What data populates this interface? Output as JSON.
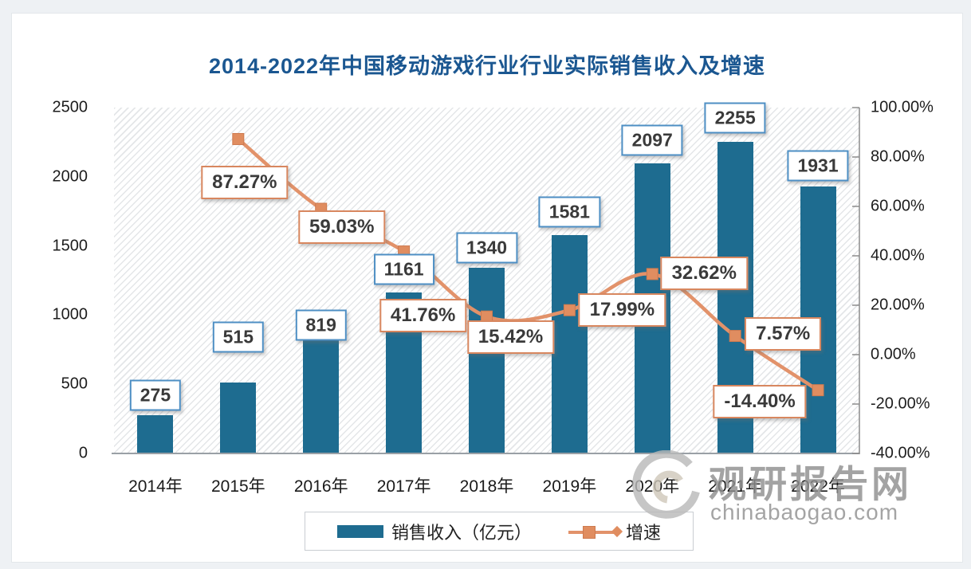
{
  "title": "2014-2022年中国移动游戏行业行业实际销售收入及增速",
  "watermark": {
    "brand": "观研报告网",
    "site": "chinabaogao.com"
  },
  "legend": [
    {
      "label": "销售收入（亿元）",
      "swatch": "bar"
    },
    {
      "label": "增速",
      "swatch": "line"
    }
  ],
  "colors": {
    "bar": "#1e6c90",
    "line": "#e2926a",
    "marker": "#e08d60",
    "marker_border": "#cd7a4f",
    "bar_label_border": "#4e8fc4",
    "pct_label_border": "#d8875f",
    "title": "#1b5791",
    "axis_line": "#9aa0a6",
    "watermark": "#8f8f8f"
  },
  "chart_data": {
    "type": "bar",
    "subtype": "bar+line-dual-axis",
    "title": "2014-2022年中国移动游戏行业行业实际销售收入及增速",
    "categories": [
      "2014年",
      "2015年",
      "2016年",
      "2017年",
      "2018年",
      "2019年",
      "2020年",
      "2021年",
      "2022年"
    ],
    "series": [
      {
        "name": "销售收入（亿元）",
        "type": "bar",
        "axis": "left",
        "values": [
          275,
          515,
          819,
          1161,
          1340,
          1581,
          2097,
          2255,
          1931
        ],
        "labels": [
          "275",
          "515",
          "819",
          "1161",
          "1340",
          "1581",
          "2097",
          "2255",
          "1931"
        ]
      },
      {
        "name": "增速",
        "type": "line",
        "axis": "right",
        "values": [
          null,
          87.27,
          59.03,
          41.76,
          15.42,
          17.99,
          32.62,
          7.57,
          -14.4
        ],
        "labels": [
          null,
          "87.27%",
          "59.03%",
          "41.76%",
          "15.42%",
          "17.99%",
          "32.62%",
          "7.57%",
          "-14.40%"
        ]
      }
    ],
    "left_axis": {
      "min": 0,
      "max": 2500,
      "ticks": [
        "2500",
        "2000",
        "1500",
        "1000",
        "500",
        "0"
      ]
    },
    "right_axis": {
      "min": -40,
      "max": 100,
      "ticks": [
        "100.00%",
        "80.00%",
        "60.00%",
        "40.00%",
        "20.00%",
        "0.00%",
        "-20.00%",
        "-40.00%"
      ]
    },
    "grid": false,
    "legend_position": "bottom",
    "plot_background": "diagonal-hatch"
  }
}
